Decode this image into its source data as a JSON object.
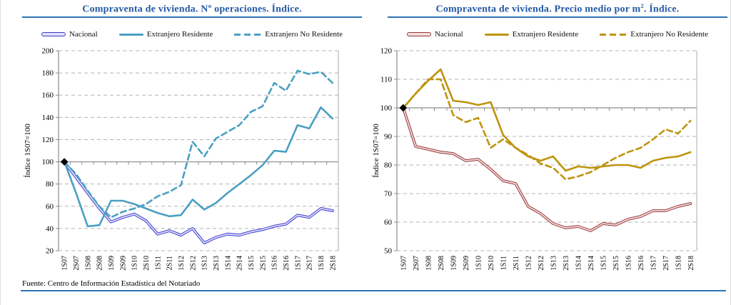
{
  "figure": {
    "footer": "Fuente: Centro de Información Estadística del Notariado",
    "accent_rule_color": "#2E74B5",
    "axis_color": "#8C8C8C",
    "gridline_color": "#B3B3B3"
  },
  "chart_data": [
    {
      "type": "line",
      "title_prefix": "Compraventa de vivienda. Nº operaciones. Índice.",
      "title_sup": "",
      "title_suffix": "",
      "ylabel": "Índice 1S07=100",
      "ylim": [
        20,
        200
      ],
      "ytick_step": 20,
      "baseline_y": 100,
      "grid": "dashed-horizontal",
      "legend_position": "top",
      "categories": [
        "1S07",
        "2S07",
        "1S08",
        "2S08",
        "1S09",
        "2S09",
        "1S10",
        "2S10",
        "1S11",
        "2S11",
        "1S12",
        "2S12",
        "1S13",
        "2S13",
        "1S14",
        "2S14",
        "1S15",
        "2S15",
        "1S16",
        "2S16",
        "1S17",
        "2S17",
        "1S18",
        "2S18"
      ],
      "series": [
        {
          "name": "Nacional",
          "style": "double",
          "color": "#3B3BCF",
          "core_color": "#E2E2FB",
          "values": [
            100,
            86,
            72,
            58,
            46,
            50,
            53,
            47,
            35,
            38,
            34,
            40,
            27,
            32,
            35,
            34,
            37,
            39,
            42,
            44,
            52,
            50,
            58,
            56
          ]
        },
        {
          "name": "Extranjero Residente",
          "style": "solid",
          "color": "#4AA0C2",
          "values": [
            100,
            72,
            42,
            43,
            65,
            65,
            62,
            58,
            54,
            51,
            52,
            66,
            57,
            63,
            72,
            80,
            88,
            97,
            110,
            109,
            133,
            130,
            149,
            139
          ]
        },
        {
          "name": "Extranjero No Residente",
          "style": "dashed",
          "color": "#4AA0C2",
          "values": [
            100,
            89,
            74,
            60,
            50,
            55,
            58,
            62,
            69,
            73,
            79,
            118,
            105,
            121,
            127,
            133,
            145,
            150,
            171,
            164,
            182,
            179,
            181,
            171
          ]
        }
      ],
      "start_marker": {
        "category": "1S07",
        "value": 100,
        "shape": "diamond",
        "color": "#000000"
      }
    },
    {
      "type": "line",
      "title_prefix": "Compraventa de vivienda. Precio medio por m",
      "title_sup": "2",
      "title_suffix": ". Índice.",
      "ylabel": "Índice 1S07=100",
      "ylim": [
        50,
        120
      ],
      "ytick_step": 10,
      "baseline_y": 100,
      "grid": "dashed-horizontal",
      "legend_position": "top",
      "categories": [
        "1S07",
        "2S07",
        "1S08",
        "2S08",
        "1S09",
        "2S09",
        "1S10",
        "2S10",
        "1S11",
        "2S11",
        "1S12",
        "2S12",
        "1S13",
        "2S13",
        "1S14",
        "2S14",
        "1S15",
        "2S15",
        "1S16",
        "2S16",
        "1S17",
        "2S17",
        "1S18",
        "2S18"
      ],
      "series": [
        {
          "name": "Nacional",
          "style": "double",
          "color": "#9A3637",
          "core_color": "#F2DEDE",
          "values": [
            100,
            86.5,
            85.5,
            84.5,
            84,
            81.5,
            82,
            78.5,
            74.5,
            73.5,
            65.5,
            63,
            59.5,
            58,
            58.5,
            57,
            59.5,
            59,
            61,
            62,
            64,
            64,
            65.5,
            66.5
          ]
        },
        {
          "name": "Extranjero Residente",
          "style": "solid",
          "color": "#BE940F",
          "values": [
            100,
            105,
            109.5,
            113.5,
            102.5,
            102,
            101,
            102,
            90.5,
            86,
            83,
            81.5,
            83,
            78,
            79.5,
            79,
            79.5,
            80,
            80,
            79,
            81.5,
            82.5,
            83,
            84.5
          ]
        },
        {
          "name": "Extranjero No Residente",
          "style": "dashed",
          "color": "#BE940F",
          "values": [
            100,
            105,
            110,
            110,
            97.5,
            95,
            96.5,
            86,
            89,
            86,
            83.5,
            80.5,
            79,
            75,
            76,
            77.5,
            80,
            82.5,
            84.5,
            86,
            89,
            92.5,
            91,
            95.5
          ]
        }
      ],
      "start_marker": {
        "category": "1S07",
        "value": 100,
        "shape": "diamond",
        "color": "#000000"
      }
    }
  ]
}
